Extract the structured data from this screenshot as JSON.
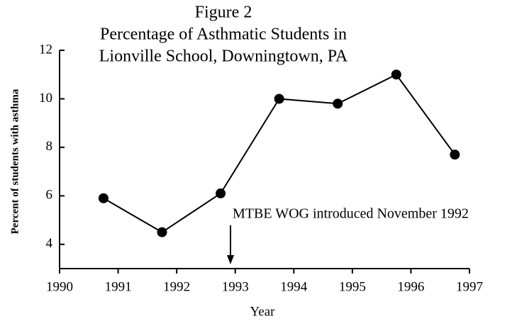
{
  "chart_data": {
    "type": "line",
    "title": [
      "Figure 2",
      "Percentage of Asthmatic Students in",
      "Lionville School, Downingtown, PA"
    ],
    "xlabel": "Year",
    "ylabel": "Percent of students with asthma",
    "x": [
      1990.75,
      1991.75,
      1992.75,
      1993.75,
      1994.75,
      1995.75,
      1996.75
    ],
    "series": [
      {
        "name": null,
        "color": "#000000",
        "values": [
          5.9,
          4.5,
          6.1,
          10.0,
          9.8,
          11.0,
          7.7
        ]
      }
    ],
    "xlim": [
      1990,
      1997
    ],
    "xticks": [
      1990,
      1991,
      1992,
      1993,
      1994,
      1995,
      1996,
      1997
    ],
    "ylim": [
      3,
      12
    ],
    "yticks": [
      4,
      6,
      8,
      10,
      12
    ],
    "annotation": "MTBE WOG introduced November 1992"
  }
}
